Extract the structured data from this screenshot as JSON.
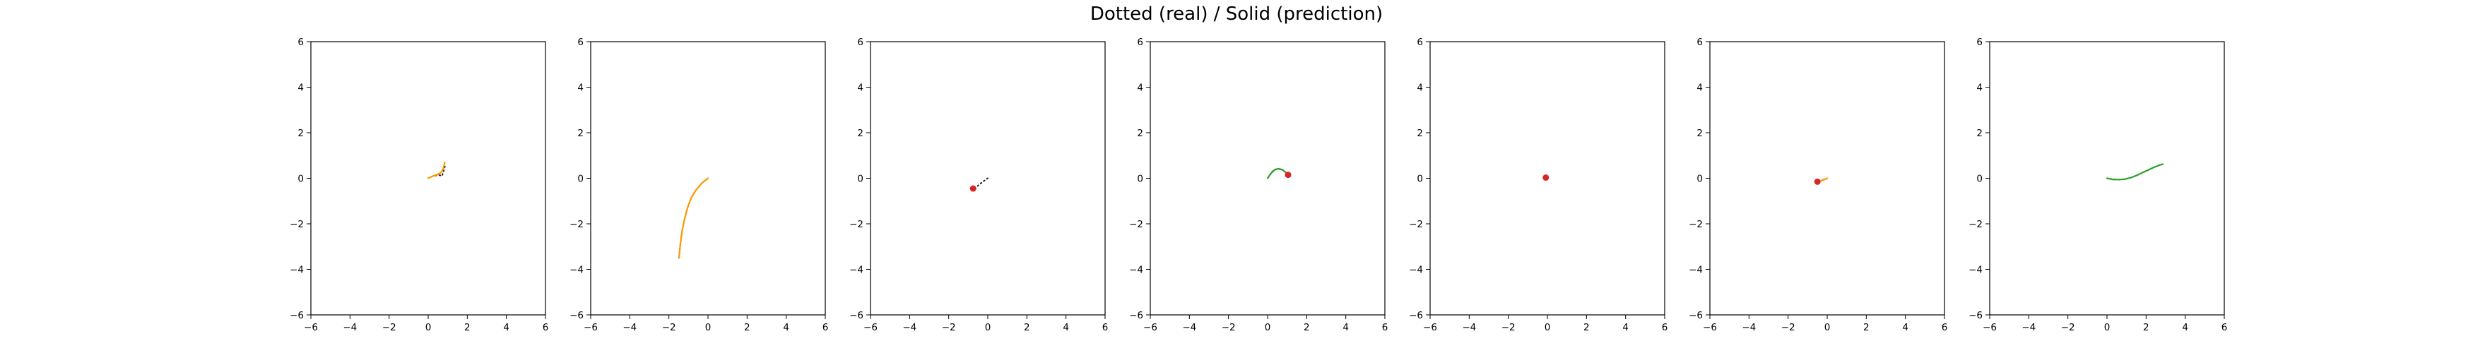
{
  "figure": {
    "suptitle": "Dotted (real) / Solid (prediction)"
  },
  "colors": {
    "real": "#1a1a1a",
    "prediction": "#ff9a00",
    "prediction_alt": "#2ca02c",
    "marker": "#d62728",
    "background": "#ffffff",
    "axes": "#000000"
  },
  "chart_data": [
    {
      "type": "line",
      "xlim": [
        -6,
        6
      ],
      "ylim": [
        -6,
        6
      ],
      "xticks": [
        -6,
        -4,
        -2,
        0,
        2,
        4,
        6
      ],
      "yticks": [
        -6,
        -4,
        -2,
        0,
        2,
        4,
        6
      ],
      "grid": false,
      "series": [
        {
          "style": "dotted",
          "points": [
            [
              0,
              0
            ],
            [
              0.2,
              0.08
            ],
            [
              0.4,
              0.12
            ],
            [
              0.55,
              0.14
            ],
            [
              0.65,
              0.12
            ],
            [
              0.7,
              0.1
            ],
            [
              0.75,
              0.2
            ],
            [
              0.8,
              0.35
            ],
            [
              0.85,
              0.5
            ],
            [
              0.88,
              0.62
            ]
          ]
        },
        {
          "style": "solid",
          "points": [
            [
              0,
              0
            ],
            [
              0.25,
              0.1
            ],
            [
              0.45,
              0.16
            ],
            [
              0.6,
              0.22
            ],
            [
              0.7,
              0.3
            ],
            [
              0.78,
              0.45
            ],
            [
              0.82,
              0.58
            ],
            [
              0.85,
              0.7
            ]
          ]
        }
      ]
    },
    {
      "type": "line",
      "xlim": [
        -6,
        6
      ],
      "ylim": [
        -6,
        6
      ],
      "xticks": [
        -6,
        -4,
        -2,
        0,
        2,
        4,
        6
      ],
      "yticks": [
        -6,
        -4,
        -2,
        0,
        2,
        4,
        6
      ],
      "grid": false,
      "series": [
        {
          "style": "dotted",
          "points": [
            [
              0,
              0
            ],
            [
              -0.3,
              -0.2
            ],
            [
              -0.6,
              -0.5
            ],
            [
              -0.85,
              -0.85
            ],
            [
              -1.05,
              -1.3
            ],
            [
              -1.2,
              -1.8
            ],
            [
              -1.32,
              -2.3
            ],
            [
              -1.4,
              -2.8
            ],
            [
              -1.45,
              -3.2
            ],
            [
              -1.48,
              -3.5
            ]
          ]
        },
        {
          "style": "solid",
          "points": [
            [
              0,
              0
            ],
            [
              -0.3,
              -0.2
            ],
            [
              -0.6,
              -0.5
            ],
            [
              -0.85,
              -0.85
            ],
            [
              -1.05,
              -1.3
            ],
            [
              -1.2,
              -1.8
            ],
            [
              -1.32,
              -2.3
            ],
            [
              -1.4,
              -2.8
            ],
            [
              -1.45,
              -3.2
            ],
            [
              -1.48,
              -3.5
            ]
          ]
        }
      ]
    },
    {
      "type": "line",
      "xlim": [
        -6,
        6
      ],
      "ylim": [
        -6,
        6
      ],
      "xticks": [
        -6,
        -4,
        -2,
        0,
        2,
        4,
        6
      ],
      "yticks": [
        -6,
        -4,
        -2,
        0,
        2,
        4,
        6
      ],
      "grid": false,
      "series": [
        {
          "style": "dotted",
          "points": [
            [
              0,
              0
            ],
            [
              -0.2,
              -0.12
            ],
            [
              -0.4,
              -0.25
            ],
            [
              -0.55,
              -0.36
            ],
            [
              -0.7,
              -0.45
            ],
            [
              -0.75,
              -0.5
            ]
          ]
        },
        {
          "style": "solid",
          "points": [
            [
              -0.75,
              -0.45
            ],
            [
              -0.72,
              -0.42
            ]
          ]
        }
      ],
      "markers": [
        [
          -0.75,
          -0.45
        ]
      ]
    },
    {
      "type": "line",
      "xlim": [
        -6,
        6
      ],
      "ylim": [
        -6,
        6
      ],
      "xticks": [
        -6,
        -4,
        -2,
        0,
        2,
        4,
        6
      ],
      "yticks": [
        -6,
        -4,
        -2,
        0,
        2,
        4,
        6
      ],
      "grid": false,
      "series": [
        {
          "style": "dotted",
          "points": [
            [
              0,
              0
            ],
            [
              0.15,
              0.2
            ],
            [
              0.3,
              0.35
            ],
            [
              0.5,
              0.42
            ],
            [
              0.7,
              0.4
            ],
            [
              0.85,
              0.32
            ],
            [
              1.0,
              0.2
            ],
            [
              1.1,
              0.12
            ]
          ]
        },
        {
          "style": "solid",
          "points": [
            [
              0,
              0
            ],
            [
              0.18,
              0.22
            ],
            [
              0.35,
              0.36
            ],
            [
              0.55,
              0.42
            ],
            [
              0.75,
              0.38
            ],
            [
              0.9,
              0.28
            ],
            [
              1.05,
              0.15
            ]
          ]
        }
      ],
      "markers": [
        [
          1.05,
          0.15
        ]
      ]
    },
    {
      "type": "line",
      "xlim": [
        -6,
        6
      ],
      "ylim": [
        -6,
        6
      ],
      "xticks": [
        -6,
        -4,
        -2,
        0,
        2,
        4,
        6
      ],
      "yticks": [
        -6,
        -4,
        -2,
        0,
        2,
        4,
        6
      ],
      "grid": false,
      "series": [
        {
          "style": "dotted",
          "points": [
            [
              0,
              0
            ],
            [
              -0.05,
              0.02
            ],
            [
              -0.1,
              0.03
            ]
          ]
        },
        {
          "style": "solid",
          "points": [
            [
              0,
              0
            ],
            [
              -0.05,
              0.02
            ],
            [
              -0.1,
              0.03
            ]
          ]
        }
      ],
      "markers": [
        [
          -0.08,
          0.03
        ]
      ]
    },
    {
      "type": "line",
      "xlim": [
        -6,
        6
      ],
      "ylim": [
        -6,
        6
      ],
      "xticks": [
        -6,
        -4,
        -2,
        0,
        2,
        4,
        6
      ],
      "yticks": [
        -6,
        -4,
        -2,
        0,
        2,
        4,
        6
      ],
      "grid": false,
      "series": [
        {
          "style": "dotted",
          "points": [
            [
              0,
              0
            ],
            [
              -0.15,
              -0.05
            ],
            [
              -0.3,
              -0.1
            ],
            [
              -0.45,
              -0.15
            ],
            [
              -0.55,
              -0.18
            ]
          ]
        },
        {
          "style": "solid",
          "points": [
            [
              0,
              0
            ],
            [
              -0.15,
              -0.06
            ],
            [
              -0.3,
              -0.11
            ],
            [
              -0.45,
              -0.15
            ]
          ]
        }
      ],
      "markers": [
        [
          -0.5,
          -0.15
        ]
      ]
    },
    {
      "type": "line",
      "xlim": [
        -6,
        6
      ],
      "ylim": [
        -6,
        6
      ],
      "xticks": [
        -6,
        -4,
        -2,
        0,
        2,
        4,
        6
      ],
      "yticks": [
        -6,
        -4,
        -2,
        0,
        2,
        4,
        6
      ],
      "grid": false,
      "series": [
        {
          "style": "dotted",
          "points": [
            [
              0,
              0
            ],
            [
              0.3,
              -0.05
            ],
            [
              0.6,
              -0.06
            ],
            [
              0.9,
              -0.04
            ],
            [
              1.2,
              0.02
            ],
            [
              1.5,
              0.12
            ],
            [
              1.8,
              0.24
            ],
            [
              2.1,
              0.36
            ],
            [
              2.4,
              0.48
            ],
            [
              2.7,
              0.58
            ],
            [
              2.85,
              0.62
            ]
          ]
        },
        {
          "style": "solid",
          "points": [
            [
              0,
              0
            ],
            [
              0.3,
              -0.05
            ],
            [
              0.6,
              -0.06
            ],
            [
              0.9,
              -0.04
            ],
            [
              1.2,
              0.02
            ],
            [
              1.5,
              0.12
            ],
            [
              1.8,
              0.24
            ],
            [
              2.1,
              0.36
            ],
            [
              2.4,
              0.48
            ],
            [
              2.7,
              0.58
            ],
            [
              2.85,
              0.62
            ]
          ]
        }
      ]
    }
  ]
}
